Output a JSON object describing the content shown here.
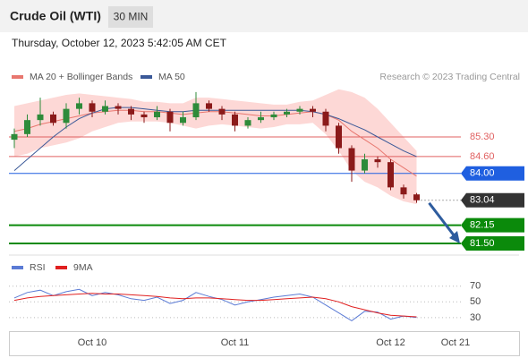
{
  "header": {
    "title": "Crude Oil (WTI)",
    "interval": "30 MIN",
    "timestamp": "Thursday, October 12, 2023 5:42:05 AM CET"
  },
  "chart_data": [
    {
      "type": "candlestick",
      "credit": "Research © 2023 Trading Central",
      "categories": [
        null,
        null,
        null,
        null,
        null,
        null,
        "Oct 10",
        null,
        null,
        null,
        null,
        null,
        null,
        null,
        null,
        null,
        null,
        "Oct 11",
        null,
        null,
        null,
        null,
        null,
        null,
        null,
        null,
        null,
        null,
        null,
        "Oct 12",
        null,
        null,
        null,
        null,
        "Oct 21"
      ],
      "open": [
        85.2,
        85.4,
        85.9,
        86.1,
        85.8,
        86.3,
        86.5,
        86.2,
        86.4,
        86.3,
        86.1,
        86.0,
        86.2,
        85.8,
        86.0,
        86.5,
        86.3,
        86.1,
        85.7,
        85.9,
        86.0,
        86.1,
        86.2,
        86.3,
        86.2,
        85.7,
        84.9,
        84.1,
        84.5,
        84.4,
        83.5,
        83.25,
        null,
        null,
        null
      ],
      "high": [
        85.6,
        86.1,
        86.7,
        86.2,
        86.5,
        86.7,
        86.6,
        86.6,
        86.5,
        86.4,
        86.2,
        86.4,
        86.3,
        86.2,
        86.9,
        86.6,
        86.4,
        86.2,
        86.0,
        86.2,
        86.2,
        86.3,
        86.4,
        86.4,
        86.3,
        85.8,
        85.0,
        84.7,
        84.6,
        84.5,
        83.6,
        83.3,
        null,
        null,
        null
      ],
      "low": [
        84.9,
        85.3,
        85.7,
        85.7,
        85.6,
        86.1,
        86.0,
        86.1,
        86.1,
        85.9,
        85.8,
        85.9,
        85.5,
        85.7,
        85.9,
        86.2,
        85.9,
        85.5,
        85.6,
        85.8,
        85.9,
        86.0,
        86.1,
        86.0,
        85.5,
        84.7,
        83.7,
        84.0,
        84.2,
        83.4,
        83.1,
        82.95,
        null,
        null,
        null
      ],
      "close": [
        85.4,
        85.9,
        86.1,
        85.8,
        86.3,
        86.5,
        86.2,
        86.4,
        86.3,
        86.1,
        86.0,
        86.2,
        85.8,
        86.0,
        86.5,
        86.3,
        86.1,
        85.7,
        85.9,
        86.0,
        86.1,
        86.2,
        86.3,
        86.2,
        85.7,
        84.9,
        84.1,
        84.5,
        84.4,
        83.5,
        83.25,
        83.04,
        null,
        null,
        null
      ],
      "up_color": "#2e8b3a",
      "down_color": "#8b1a1a",
      "series": [
        {
          "name": "MA 20 + Bollinger Bands",
          "color": "#e8776f",
          "band_color": "#fdd8d6",
          "values": [
            85.5,
            85.6,
            85.75,
            85.85,
            85.95,
            86.05,
            86.15,
            86.2,
            86.25,
            86.25,
            86.2,
            86.2,
            86.15,
            86.1,
            86.15,
            86.2,
            86.2,
            86.15,
            86.1,
            86.05,
            86.05,
            86.1,
            86.15,
            86.2,
            86.1,
            85.9,
            85.5,
            85.2,
            84.9,
            84.5,
            84.2,
            83.9,
            null,
            null,
            null
          ],
          "upper": [
            86.4,
            86.5,
            86.6,
            86.7,
            86.8,
            86.85,
            86.8,
            86.75,
            86.7,
            86.65,
            86.55,
            86.55,
            86.5,
            86.5,
            86.7,
            86.7,
            86.65,
            86.6,
            86.55,
            86.5,
            86.45,
            86.45,
            86.55,
            86.6,
            86.8,
            87.0,
            86.9,
            86.7,
            86.3,
            85.8,
            85.3,
            84.8,
            null,
            null,
            null
          ],
          "lower": [
            84.6,
            84.7,
            84.9,
            85.0,
            85.1,
            85.25,
            85.5,
            85.65,
            85.8,
            85.85,
            85.85,
            85.85,
            85.8,
            85.7,
            85.6,
            85.7,
            85.75,
            85.7,
            85.65,
            85.6,
            85.65,
            85.75,
            85.75,
            85.8,
            85.4,
            84.8,
            84.1,
            83.7,
            83.5,
            83.2,
            83.0,
            82.9,
            null,
            null,
            null
          ]
        },
        {
          "name": "MA 50",
          "color": "#3b5998",
          "values": [
            84.1,
            84.5,
            84.9,
            85.3,
            85.65,
            85.95,
            86.15,
            86.3,
            86.35,
            86.35,
            86.3,
            86.25,
            86.2,
            86.2,
            86.25,
            86.25,
            86.25,
            86.25,
            86.25,
            86.25,
            86.25,
            86.25,
            86.25,
            86.2,
            86.1,
            85.95,
            85.75,
            85.55,
            85.3,
            85.05,
            84.8,
            84.6,
            null,
            null,
            null
          ]
        }
      ],
      "levels": [
        {
          "value": 85.3,
          "label": "85.30",
          "color": "#e06060",
          "style": "text"
        },
        {
          "value": 84.6,
          "label": "84.60",
          "color": "#e06060",
          "style": "text"
        },
        {
          "value": 84.0,
          "label": "84.00",
          "color": "#1f5fe0",
          "style": "badge"
        },
        {
          "value": 83.04,
          "label": "83.04",
          "color": "#333333",
          "style": "current"
        },
        {
          "value": 82.15,
          "label": "82.15",
          "color": "#0b8a0b",
          "style": "badge"
        },
        {
          "value": 81.5,
          "label": "81.50",
          "color": "#0b8a0b",
          "style": "badge"
        }
      ],
      "ylim": [
        81.15,
        87.15
      ]
    },
    {
      "type": "line",
      "series": [
        {
          "name": "RSI",
          "color": "#5b7bd5",
          "values": [
            55,
            62,
            65,
            58,
            63,
            66,
            58,
            62,
            59,
            54,
            52,
            56,
            48,
            52,
            62,
            57,
            53,
            46,
            50,
            53,
            56,
            58,
            60,
            56,
            46,
            36,
            26,
            38,
            37,
            28,
            32,
            30,
            null,
            null,
            null
          ]
        },
        {
          "name": "9MA",
          "color": "#e02020",
          "values": [
            52,
            55,
            57,
            58,
            59,
            60,
            61,
            60,
            60,
            59,
            58,
            57,
            55,
            54,
            55,
            55,
            54,
            53,
            52,
            52,
            53,
            54,
            55,
            56,
            54,
            50,
            44,
            40,
            36,
            33,
            32,
            31,
            null,
            null,
            null
          ]
        }
      ],
      "ylim": [
        15,
        80
      ],
      "yticks": [
        70,
        50,
        30
      ]
    }
  ]
}
